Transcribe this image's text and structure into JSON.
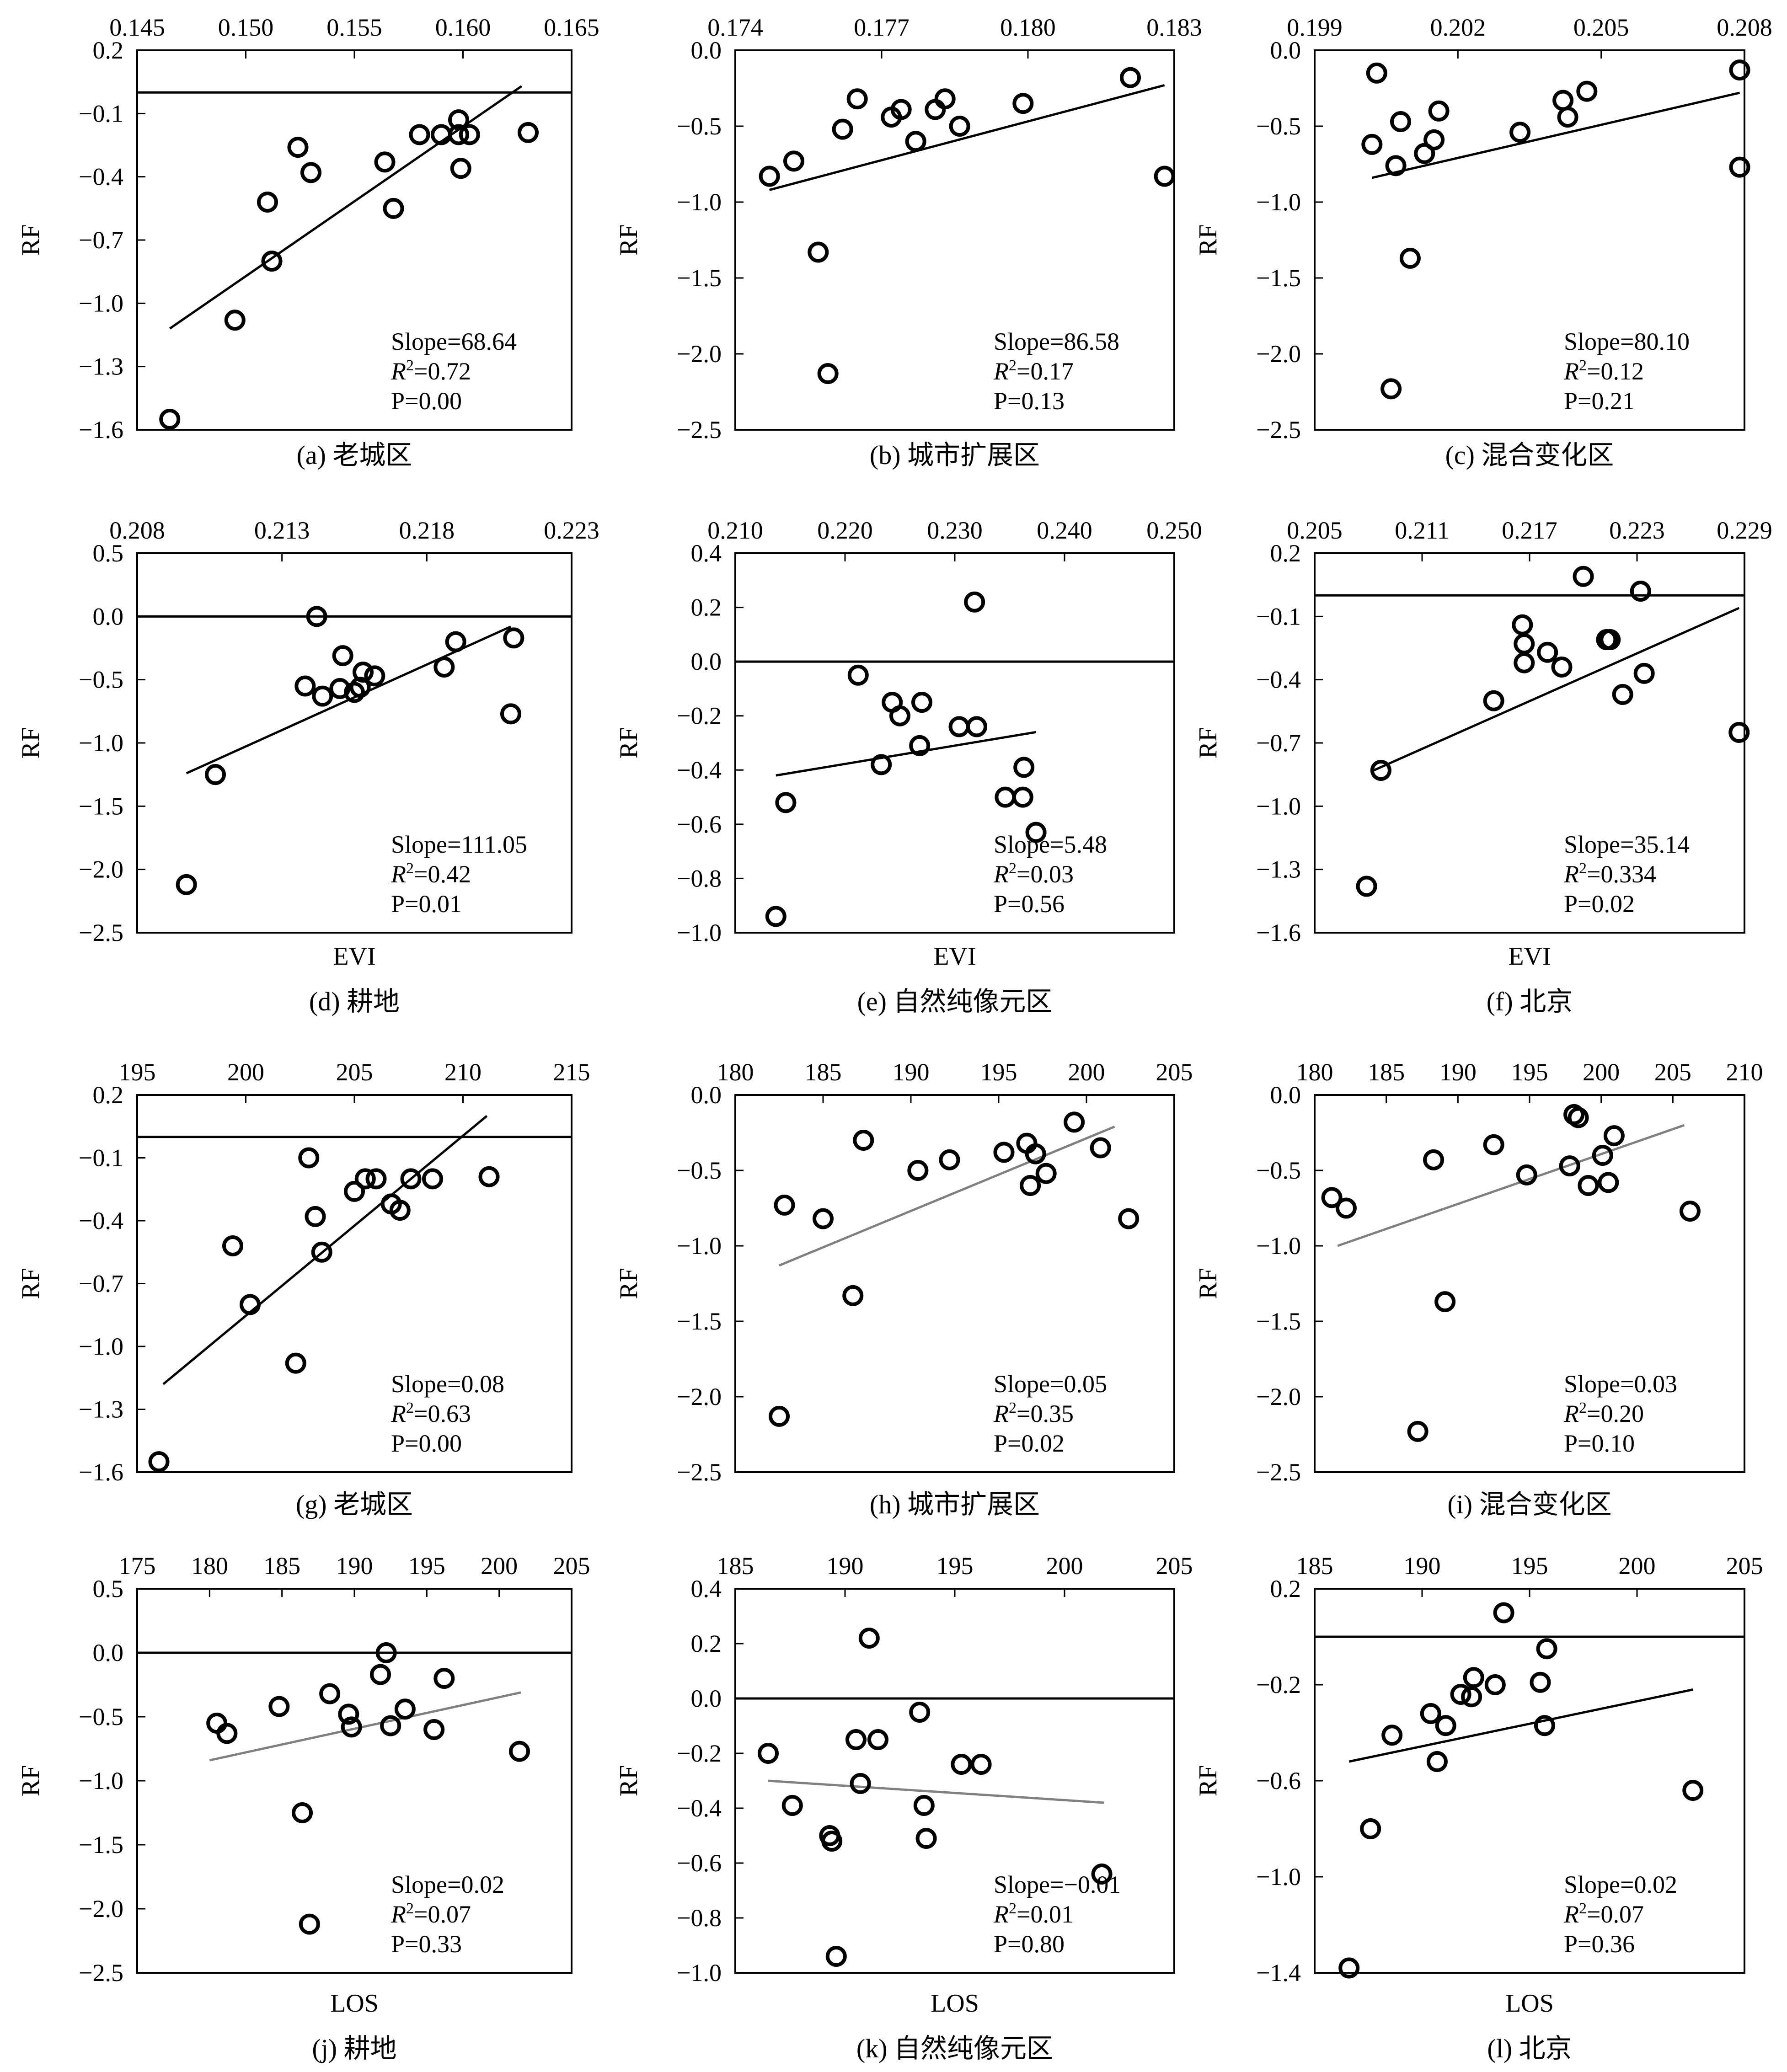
{
  "chart_data": [
    {
      "id": "a",
      "type": "scatter",
      "caption": "(a) 老城区",
      "x_ticks": [
        "0.145",
        "0.150",
        "0.155",
        "0.160",
        "0.165"
      ],
      "xlim": [
        0.145,
        0.165
      ],
      "y_ticks": [
        "0.2",
        "−0.1",
        "−0.4",
        "−0.7",
        "−1.0",
        "−1.3",
        "−1.6"
      ],
      "ylim": [
        -1.6,
        0.2
      ],
      "ylabel": "RF",
      "xlabel": "",
      "points": [
        [
          0.1465,
          -1.55
        ],
        [
          0.1495,
          -1.08
        ],
        [
          0.151,
          -0.52
        ],
        [
          0.1512,
          -0.8
        ],
        [
          0.1524,
          -0.26
        ],
        [
          0.153,
          -0.38
        ],
        [
          0.1564,
          -0.33
        ],
        [
          0.1568,
          -0.55
        ],
        [
          0.158,
          -0.2
        ],
        [
          0.159,
          -0.2
        ],
        [
          0.1598,
          -0.13
        ],
        [
          0.1598,
          -0.2
        ],
        [
          0.1599,
          -0.36
        ],
        [
          0.1603,
          -0.2
        ],
        [
          0.163,
          -0.19
        ]
      ],
      "fit": [
        [
          0.1465,
          -1.12
        ],
        [
          0.1627,
          0.03
        ]
      ],
      "ref_y": 0.0,
      "stats": {
        "slope": "Slope=68.64",
        "r2": "=0.72",
        "p": "P=0.00"
      }
    },
    {
      "id": "b",
      "type": "scatter",
      "caption": "(b) 城市扩展区",
      "x_ticks": [
        "0.174",
        "0.177",
        "0.180",
        "0.183"
      ],
      "xlim": [
        0.174,
        0.183
      ],
      "y_ticks": [
        "0.0",
        "−0.5",
        "−1.0",
        "−1.5",
        "−2.0",
        "−2.5"
      ],
      "ylim": [
        -2.5,
        0.0
      ],
      "ylabel": "RF",
      "xlabel": "",
      "points": [
        [
          0.1747,
          -0.83
        ],
        [
          0.1752,
          -0.73
        ],
        [
          0.1757,
          -1.33
        ],
        [
          0.1759,
          -2.13
        ],
        [
          0.1762,
          -0.52
        ],
        [
          0.1765,
          -0.32
        ],
        [
          0.1772,
          -0.44
        ],
        [
          0.1774,
          -0.39
        ],
        [
          0.1777,
          -0.6
        ],
        [
          0.1781,
          -0.39
        ],
        [
          0.1783,
          -0.32
        ],
        [
          0.1786,
          -0.5
        ],
        [
          0.1799,
          -0.35
        ],
        [
          0.1821,
          -0.18
        ],
        [
          0.1828,
          -0.83
        ]
      ],
      "fit": [
        [
          0.1747,
          -0.92
        ],
        [
          0.1828,
          -0.23
        ]
      ],
      "ref_y": null,
      "stats": {
        "slope": "Slope=86.58",
        "r2": "=0.17",
        "p": "P=0.13"
      }
    },
    {
      "id": "c",
      "type": "scatter",
      "caption": "(c) 混合变化区",
      "x_ticks": [
        "0.199",
        "0.202",
        "0.205",
        "0.208"
      ],
      "xlim": [
        0.199,
        0.208
      ],
      "y_ticks": [
        "0.0",
        "−0.5",
        "−1.0",
        "−1.5",
        "−2.0",
        "−2.5"
      ],
      "ylim": [
        -2.5,
        0.0
      ],
      "ylabel": "RF",
      "xlabel": "",
      "points": [
        [
          0.2002,
          -0.62
        ],
        [
          0.2003,
          -0.15
        ],
        [
          0.2006,
          -2.23
        ],
        [
          0.2007,
          -0.76
        ],
        [
          0.2008,
          -0.47
        ],
        [
          0.201,
          -1.37
        ],
        [
          0.2013,
          -0.68
        ],
        [
          0.2015,
          -0.59
        ],
        [
          0.2016,
          -0.4
        ],
        [
          0.2033,
          -0.54
        ],
        [
          0.2042,
          -0.33
        ],
        [
          0.2043,
          -0.44
        ],
        [
          0.2047,
          -0.27
        ],
        [
          0.2079,
          -0.13
        ],
        [
          0.2079,
          -0.77
        ]
      ],
      "fit": [
        [
          0.2002,
          -0.84
        ],
        [
          0.2079,
          -0.28
        ]
      ],
      "ref_y": null,
      "stats": {
        "slope": "Slope=80.10",
        "r2": "=0.12",
        "p": "P=0.21"
      }
    },
    {
      "id": "d",
      "type": "scatter",
      "caption": "(d) 耕地",
      "x_ticks": [
        "0.208",
        "0.213",
        "0.218",
        "0.223"
      ],
      "xlim": [
        0.208,
        0.223
      ],
      "y_ticks": [
        "0.5",
        "0.0",
        "−0.5",
        "−1.0",
        "−1.5",
        "−2.0",
        "−2.5"
      ],
      "ylim": [
        -2.5,
        0.5
      ],
      "ylabel": "RF",
      "xlabel": "EVI",
      "points": [
        [
          0.2097,
          -2.12
        ],
        [
          0.2107,
          -1.25
        ],
        [
          0.2138,
          -0.55
        ],
        [
          0.2142,
          0.0
        ],
        [
          0.2144,
          -0.63
        ],
        [
          0.215,
          -0.57
        ],
        [
          0.2151,
          -0.31
        ],
        [
          0.2155,
          -0.6
        ],
        [
          0.2157,
          -0.56
        ],
        [
          0.2158,
          -0.44
        ],
        [
          0.2162,
          -0.47
        ],
        [
          0.2186,
          -0.4
        ],
        [
          0.219,
          -0.2
        ],
        [
          0.2209,
          -0.77
        ],
        [
          0.221,
          -0.17
        ]
      ],
      "fit": [
        [
          0.2097,
          -1.24
        ],
        [
          0.2209,
          -0.08
        ]
      ],
      "ref_y": 0.0,
      "stats": {
        "slope": "Slope=111.05",
        "r2": "=0.42",
        "p": "P=0.01"
      }
    },
    {
      "id": "e",
      "type": "scatter",
      "caption": "(e) 自然纯像元区",
      "x_ticks": [
        "0.210",
        "0.220",
        "0.230",
        "0.240",
        "0.250"
      ],
      "xlim": [
        0.21,
        0.25
      ],
      "y_ticks": [
        "0.4",
        "0.2",
        "0.0",
        "−0.2",
        "−0.4",
        "−0.6",
        "−0.8",
        "−1.0"
      ],
      "ylim": [
        -1.0,
        0.4
      ],
      "ylabel": "RF",
      "xlabel": "EVI",
      "points": [
        [
          0.2137,
          -0.94
        ],
        [
          0.2146,
          -0.52
        ],
        [
          0.2212,
          -0.05
        ],
        [
          0.2233,
          -0.38
        ],
        [
          0.2243,
          -0.15
        ],
        [
          0.225,
          -0.2
        ],
        [
          0.2268,
          -0.31
        ],
        [
          0.227,
          -0.15
        ],
        [
          0.2304,
          -0.24
        ],
        [
          0.232,
          -0.24
        ],
        [
          0.2318,
          0.22
        ],
        [
          0.2346,
          -0.5
        ],
        [
          0.2362,
          -0.5
        ],
        [
          0.2363,
          -0.39
        ],
        [
          0.2374,
          -0.63
        ]
      ],
      "fit": [
        [
          0.2137,
          -0.42
        ],
        [
          0.2374,
          -0.26
        ]
      ],
      "ref_y": 0.0,
      "stats": {
        "slope": "Slope=5.48",
        "r2": "=0.03",
        "p": "P=0.56"
      }
    },
    {
      "id": "f",
      "type": "scatter",
      "caption": "(f) 北京",
      "x_ticks": [
        "0.205",
        "0.211",
        "0.217",
        "0.223",
        "0.229"
      ],
      "xlim": [
        0.205,
        0.229
      ],
      "y_ticks": [
        "0.2",
        "−0.1",
        "−0.4",
        "−0.7",
        "−1.0",
        "−1.3",
        "−1.6"
      ],
      "ylim": [
        -1.6,
        0.2
      ],
      "ylabel": "RF",
      "xlabel": "EVI",
      "points": [
        [
          0.2079,
          -1.38
        ],
        [
          0.2087,
          -0.83
        ],
        [
          0.215,
          -0.5
        ],
        [
          0.2166,
          -0.14
        ],
        [
          0.2167,
          -0.23
        ],
        [
          0.2167,
          -0.32
        ],
        [
          0.218,
          -0.27
        ],
        [
          0.2188,
          -0.34
        ],
        [
          0.22,
          0.09
        ],
        [
          0.2213,
          -0.21
        ],
        [
          0.2215,
          -0.21
        ],
        [
          0.2222,
          -0.47
        ],
        [
          0.2232,
          0.02
        ],
        [
          0.2234,
          -0.37
        ],
        [
          0.2287,
          -0.65
        ]
      ],
      "fit": [
        [
          0.2083,
          -0.83
        ],
        [
          0.2287,
          -0.06
        ]
      ],
      "ref_y": 0.0,
      "stats": {
        "slope": "Slope=35.14",
        "r2": "=0.334",
        "p": "P=0.02"
      }
    },
    {
      "id": "g",
      "type": "scatter",
      "caption": "(g) 老城区",
      "x_ticks": [
        "195",
        "200",
        "205",
        "210",
        "215"
      ],
      "xlim": [
        195,
        215
      ],
      "y_ticks": [
        "0.2",
        "−0.1",
        "−0.4",
        "−0.7",
        "−1.0",
        "−1.3",
        "−1.6"
      ],
      "ylim": [
        -1.6,
        0.2
      ],
      "ylabel": "RF",
      "xlabel": "",
      "points": [
        [
          196.0,
          -1.55
        ],
        [
          199.4,
          -0.52
        ],
        [
          200.2,
          -0.8
        ],
        [
          202.3,
          -1.08
        ],
        [
          202.9,
          -0.1
        ],
        [
          203.2,
          -0.38
        ],
        [
          203.5,
          -0.55
        ],
        [
          205.0,
          -0.26
        ],
        [
          205.5,
          -0.2
        ],
        [
          206.0,
          -0.2
        ],
        [
          206.7,
          -0.32
        ],
        [
          207.1,
          -0.35
        ],
        [
          207.6,
          -0.2
        ],
        [
          208.6,
          -0.2
        ],
        [
          211.2,
          -0.19
        ]
      ],
      "fit": [
        [
          196.2,
          -1.18
        ],
        [
          211.1,
          0.1
        ]
      ],
      "ref_y": 0.0,
      "stats": {
        "slope": "Slope=0.08",
        "r2": "=0.63",
        "p": "P=0.00"
      }
    },
    {
      "id": "h",
      "type": "scatter",
      "caption": "(h) 城市扩展区",
      "x_ticks": [
        "180",
        "185",
        "190",
        "195",
        "200",
        "205"
      ],
      "xlim": [
        180,
        205
      ],
      "y_ticks": [
        "0.0",
        "−0.5",
        "−1.0",
        "−1.5",
        "−2.0",
        "−2.5"
      ],
      "ylim": [
        -2.5,
        0.0
      ],
      "ylabel": "RF",
      "xlabel": "",
      "points": [
        [
          182.5,
          -2.13
        ],
        [
          182.8,
          -0.73
        ],
        [
          185.0,
          -0.82
        ],
        [
          186.7,
          -1.33
        ],
        [
          187.3,
          -0.3
        ],
        [
          190.4,
          -0.5
        ],
        [
          192.2,
          -0.43
        ],
        [
          195.3,
          -0.38
        ],
        [
          196.6,
          -0.32
        ],
        [
          196.8,
          -0.6
        ],
        [
          197.1,
          -0.39
        ],
        [
          197.7,
          -0.52
        ],
        [
          199.3,
          -0.18
        ],
        [
          200.8,
          -0.35
        ],
        [
          202.4,
          -0.82
        ]
      ],
      "fit": [
        [
          182.5,
          -1.13
        ],
        [
          201.6,
          -0.21
        ]
      ],
      "ref_y": null,
      "stats": {
        "slope": "Slope=0.05",
        "r2": "=0.35",
        "p": "P=0.02"
      }
    },
    {
      "id": "i",
      "type": "scatter",
      "caption": "(i) 混合变化区",
      "x_ticks": [
        "180",
        "185",
        "190",
        "195",
        "200",
        "205",
        "210"
      ],
      "xlim": [
        180,
        210
      ],
      "y_ticks": [
        "0.0",
        "−0.5",
        "−1.0",
        "−1.5",
        "−2.0",
        "−2.5"
      ],
      "ylim": [
        -2.5,
        0.0
      ],
      "ylabel": "RF",
      "xlabel": "",
      "points": [
        [
          181.2,
          -0.68
        ],
        [
          182.2,
          -0.75
        ],
        [
          187.2,
          -2.23
        ],
        [
          188.3,
          -0.43
        ],
        [
          189.1,
          -1.37
        ],
        [
          192.5,
          -0.33
        ],
        [
          194.8,
          -0.53
        ],
        [
          197.8,
          -0.47
        ],
        [
          198.1,
          -0.13
        ],
        [
          198.4,
          -0.15
        ],
        [
          199.1,
          -0.6
        ],
        [
          200.1,
          -0.4
        ],
        [
          200.5,
          -0.58
        ],
        [
          200.9,
          -0.27
        ],
        [
          206.2,
          -0.77
        ]
      ],
      "fit": [
        [
          181.6,
          -1.0
        ],
        [
          205.8,
          -0.2
        ]
      ],
      "ref_y": null,
      "stats": {
        "slope": "Slope=0.03",
        "r2": "=0.20",
        "p": "P=0.10"
      }
    },
    {
      "id": "j",
      "type": "scatter",
      "caption": "(j) 耕地",
      "x_ticks": [
        "175",
        "180",
        "185",
        "190",
        "195",
        "200",
        "205"
      ],
      "xlim": [
        175,
        205
      ],
      "y_ticks": [
        "0.5",
        "0.0",
        "−0.5",
        "−1.0",
        "−1.5",
        "−2.0",
        "−2.5"
      ],
      "ylim": [
        -2.5,
        0.5
      ],
      "ylabel": "RF",
      "xlabel": "LOS",
      "points": [
        [
          180.5,
          -0.55
        ],
        [
          181.2,
          -0.63
        ],
        [
          184.8,
          -0.42
        ],
        [
          186.4,
          -1.25
        ],
        [
          186.9,
          -2.12
        ],
        [
          188.3,
          -0.32
        ],
        [
          189.6,
          -0.48
        ],
        [
          189.8,
          -0.58
        ],
        [
          191.8,
          -0.17
        ],
        [
          192.2,
          0.0
        ],
        [
          192.5,
          -0.57
        ],
        [
          193.5,
          -0.44
        ],
        [
          195.5,
          -0.6
        ],
        [
          196.2,
          -0.2
        ],
        [
          201.4,
          -0.77
        ]
      ],
      "fit": [
        [
          180.0,
          -0.84
        ],
        [
          201.5,
          -0.31
        ]
      ],
      "ref_y": 0.0,
      "stats": {
        "slope": "Slope=0.02",
        "r2": "=0.07",
        "p": "P=0.33"
      }
    },
    {
      "id": "k",
      "type": "scatter",
      "caption": "(k) 自然纯像元区",
      "x_ticks": [
        "185",
        "190",
        "195",
        "200",
        "205"
      ],
      "xlim": [
        185,
        205
      ],
      "y_ticks": [
        "0.4",
        "0.2",
        "0.0",
        "−0.2",
        "−0.4",
        "−0.6",
        "−0.8",
        "−1.0"
      ],
      "ylim": [
        -1.0,
        0.4
      ],
      "ylabel": "RF",
      "xlabel": "LOS",
      "points": [
        [
          186.5,
          -0.2
        ],
        [
          187.6,
          -0.39
        ],
        [
          189.3,
          -0.5
        ],
        [
          189.4,
          -0.52
        ],
        [
          189.6,
          -0.94
        ],
        [
          190.5,
          -0.15
        ],
        [
          190.7,
          -0.31
        ],
        [
          191.1,
          0.22
        ],
        [
          191.5,
          -0.15
        ],
        [
          193.4,
          -0.05
        ],
        [
          193.6,
          -0.39
        ],
        [
          193.7,
          -0.51
        ],
        [
          195.3,
          -0.24
        ],
        [
          196.2,
          -0.24
        ],
        [
          201.7,
          -0.64
        ]
      ],
      "fit": [
        [
          186.5,
          -0.3
        ],
        [
          201.8,
          -0.38
        ]
      ],
      "ref_y": 0.0,
      "stats": {
        "slope": "Slope=−0.01",
        "r2": "=0.01",
        "p": "P=0.80"
      }
    },
    {
      "id": "l",
      "type": "scatter",
      "caption": "(l) 北京",
      "x_ticks": [
        "185",
        "190",
        "195",
        "200",
        "205"
      ],
      "xlim": [
        185,
        205
      ],
      "y_ticks": [
        "0.2",
        "−0.2",
        "−0.6",
        "−1.0",
        "−1.4"
      ],
      "ylim": [
        -1.4,
        0.2
      ],
      "ylabel": "RF",
      "xlabel": "LOS",
      "points": [
        [
          186.6,
          -1.38
        ],
        [
          187.6,
          -0.8
        ],
        [
          188.6,
          -0.41
        ],
        [
          190.4,
          -0.32
        ],
        [
          190.7,
          -0.52
        ],
        [
          191.1,
          -0.37
        ],
        [
          191.8,
          -0.24
        ],
        [
          192.3,
          -0.25
        ],
        [
          192.4,
          -0.17
        ],
        [
          193.4,
          -0.2
        ],
        [
          193.8,
          0.1
        ],
        [
          195.5,
          -0.19
        ],
        [
          195.7,
          -0.37
        ],
        [
          195.8,
          -0.05
        ],
        [
          202.6,
          -0.64
        ]
      ],
      "fit": [
        [
          186.6,
          -0.52
        ],
        [
          202.6,
          -0.22
        ]
      ],
      "ref_y": 0.0,
      "stats": {
        "slope": "Slope=0.02",
        "r2": "=0.07",
        "p": "P=0.36"
      }
    }
  ],
  "style": {
    "ink": "#000000",
    "fit_line_gray": "#808080",
    "gray_fit_panels": [
      "h",
      "i",
      "j",
      "k"
    ]
  }
}
